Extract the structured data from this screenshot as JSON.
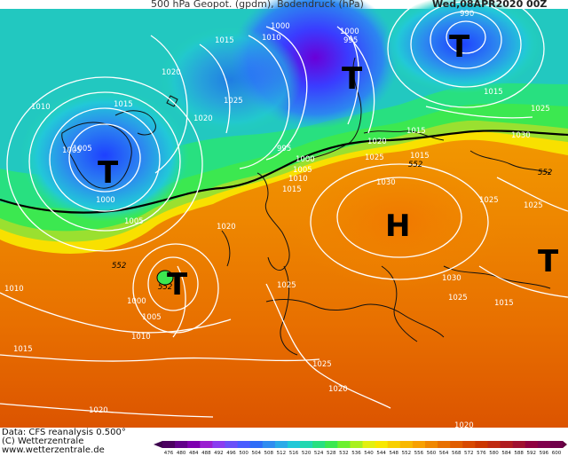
{
  "header": {
    "title": "500 hPa Geopot. (gpdm), Bodendruck (hPa)",
    "date": "Wed,08APR2020 00Z"
  },
  "footer": {
    "data_line": "Data: CFS reanalysis 0.500°",
    "copyright": "(C) Wetterzentrale",
    "url": "www.wetterzentrale.de"
  },
  "systems": {
    "lows": [
      "T",
      "T",
      "T",
      "T",
      "T"
    ],
    "high": "H"
  },
  "pressure_labels": [
    "1005",
    "1015",
    "1000",
    "995",
    "1000",
    "990",
    "1015",
    "1020",
    "1015",
    "1010",
    "1025",
    "1020",
    "1010",
    "1005",
    "1015",
    "1005",
    "1000",
    "1025",
    "995",
    "1000",
    "1005",
    "1010",
    "1015",
    "1020",
    "1015",
    "1025",
    "1030",
    "1030",
    "1025",
    "1020",
    "1025",
    "1030",
    "1025",
    "1015",
    "1025",
    "1010",
    "1000",
    "1005",
    "1010",
    "1015",
    "1025",
    "1020",
    "1020",
    "1020"
  ],
  "height_labels": [
    "552",
    "552",
    "552",
    "552"
  ],
  "legend": {
    "colors": [
      "#4b0060",
      "#62008a",
      "#7e00b0",
      "#9a1fd0",
      "#8a3cf0",
      "#6a50f8",
      "#4a5cff",
      "#2e6df7",
      "#2f8cf0",
      "#2aaae8",
      "#20c8d8",
      "#22d8b0",
      "#28e080",
      "#3ce850",
      "#6cf030",
      "#a8f020",
      "#e2f010",
      "#f8e800",
      "#f8d000",
      "#f8b800",
      "#f8a000",
      "#f08800",
      "#e87000",
      "#e05c00",
      "#d84800",
      "#cc3600",
      "#c02a10",
      "#b01c20",
      "#a01030",
      "#900040",
      "#80004c",
      "#70004a"
    ],
    "labels": [
      "476",
      "480",
      "484",
      "488",
      "492",
      "496",
      "500",
      "504",
      "508",
      "512",
      "516",
      "520",
      "524",
      "528",
      "532",
      "536",
      "540",
      "544",
      "548",
      "552",
      "556",
      "560",
      "564",
      "568",
      "572",
      "576",
      "580",
      "584",
      "588",
      "592",
      "596",
      "600"
    ]
  }
}
